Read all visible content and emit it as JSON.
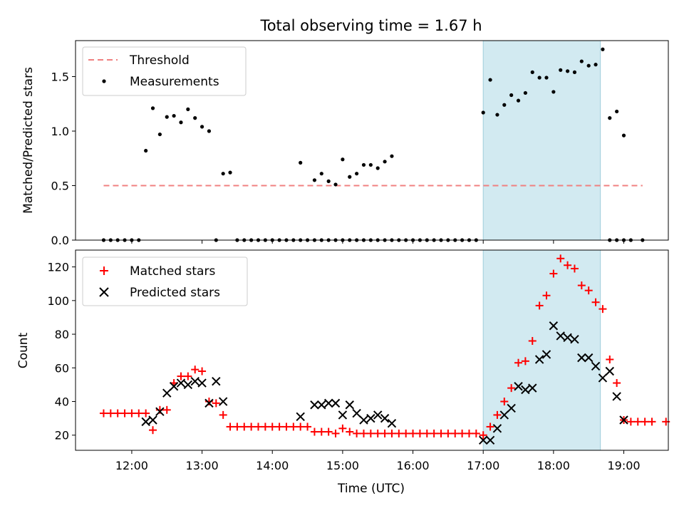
{
  "figure_title": "Total observing time = 1.67 h",
  "chart_data": [
    {
      "type": "scatter",
      "panel": "top",
      "title": "Total observing time = 1.67 h",
      "xlabel": "",
      "ylabel": "Matched/Predicted stars",
      "xlim": [
        "11:12",
        "19:38"
      ],
      "ylim": [
        0,
        1.83
      ],
      "yticks": [
        0.0,
        0.5,
        1.0,
        1.5
      ],
      "ytick_labels": [
        "0.0",
        "0.5",
        "1.0",
        "1.5"
      ],
      "highlight_span": {
        "x0": "17:00",
        "x1": "18:40",
        "color": "#add8e6"
      },
      "legend": {
        "location": "top-left",
        "entries": [
          "Threshold",
          "Measurements"
        ]
      },
      "threshold": {
        "name": "Threshold",
        "x0": "11:36",
        "x1": "19:16",
        "y": 0.5,
        "color": "#f08080",
        "style": "dashed"
      },
      "series": [
        {
          "name": "Measurements",
          "color": "#000000",
          "marker": "dot",
          "points": [
            [
              "11:36",
              0
            ],
            [
              "11:42",
              0
            ],
            [
              "11:48",
              0
            ],
            [
              "11:54",
              0
            ],
            [
              "12:00",
              0
            ],
            [
              "12:06",
              0
            ],
            [
              "12:12",
              0.82
            ],
            [
              "12:18",
              1.21
            ],
            [
              "12:24",
              0.97
            ],
            [
              "12:30",
              1.13
            ],
            [
              "12:36",
              1.14
            ],
            [
              "12:42",
              1.08
            ],
            [
              "12:48",
              1.2
            ],
            [
              "12:54",
              1.12
            ],
            [
              "13:00",
              1.04
            ],
            [
              "13:06",
              1.0
            ],
            [
              "13:12",
              0
            ],
            [
              "13:18",
              0.61
            ],
            [
              "13:24",
              0.62
            ],
            [
              "13:30",
              0
            ],
            [
              "13:36",
              0
            ],
            [
              "13:42",
              0
            ],
            [
              "13:48",
              0
            ],
            [
              "13:54",
              0
            ],
            [
              "14:00",
              0
            ],
            [
              "14:06",
              0
            ],
            [
              "14:12",
              0
            ],
            [
              "14:18",
              0
            ],
            [
              "14:24",
              0
            ],
            [
              "14:30",
              0
            ],
            [
              "14:36",
              0
            ],
            [
              "14:42",
              0
            ],
            [
              "14:48",
              0
            ],
            [
              "14:54",
              0
            ],
            [
              "15:00",
              0
            ],
            [
              "15:06",
              0
            ],
            [
              "15:12",
              0
            ],
            [
              "15:18",
              0
            ],
            [
              "15:24",
              0
            ],
            [
              "15:30",
              0
            ],
            [
              "15:36",
              0
            ],
            [
              "15:42",
              0
            ],
            [
              "14:24",
              0.71
            ],
            [
              "14:36",
              0.55
            ],
            [
              "14:42",
              0.61
            ],
            [
              "14:48",
              0.54
            ],
            [
              "14:54",
              0.51
            ],
            [
              "15:00",
              0.74
            ],
            [
              "15:06",
              0.58
            ],
            [
              "15:12",
              0.61
            ],
            [
              "15:18",
              0.69
            ],
            [
              "15:24",
              0.69
            ],
            [
              "15:30",
              0.66
            ],
            [
              "15:36",
              0.72
            ],
            [
              "15:42",
              0.77
            ],
            [
              "15:48",
              0
            ],
            [
              "15:54",
              0
            ],
            [
              "16:00",
              0
            ],
            [
              "16:06",
              0
            ],
            [
              "16:12",
              0
            ],
            [
              "16:18",
              0
            ],
            [
              "16:24",
              0
            ],
            [
              "16:30",
              0
            ],
            [
              "16:36",
              0
            ],
            [
              "16:42",
              0
            ],
            [
              "16:48",
              0
            ],
            [
              "16:54",
              0
            ],
            [
              "17:00",
              1.17
            ],
            [
              "17:06",
              1.47
            ],
            [
              "17:12",
              1.15
            ],
            [
              "17:18",
              1.24
            ],
            [
              "17:24",
              1.33
            ],
            [
              "17:30",
              1.28
            ],
            [
              "17:36",
              1.35
            ],
            [
              "17:42",
              1.54
            ],
            [
              "17:48",
              1.49
            ],
            [
              "17:54",
              1.49
            ],
            [
              "18:00",
              1.36
            ],
            [
              "18:06",
              1.56
            ],
            [
              "18:12",
              1.55
            ],
            [
              "18:18",
              1.54
            ],
            [
              "18:24",
              1.64
            ],
            [
              "18:30",
              1.6
            ],
            [
              "18:36",
              1.61
            ],
            [
              "18:42",
              1.75
            ],
            [
              "18:48",
              1.12
            ],
            [
              "18:54",
              1.18
            ],
            [
              "19:00",
              0.96
            ],
            [
              "18:48",
              0
            ],
            [
              "18:54",
              0
            ],
            [
              "19:00",
              0
            ],
            [
              "19:06",
              0
            ],
            [
              "19:16",
              0
            ]
          ]
        }
      ]
    },
    {
      "type": "scatter",
      "panel": "bottom",
      "xlabel": "Time (UTC)",
      "ylabel": "Count",
      "xlim": [
        "11:12",
        "19:38"
      ],
      "ylim": [
        11,
        130
      ],
      "xticks": [
        "12:00",
        "13:00",
        "14:00",
        "15:00",
        "16:00",
        "17:00",
        "18:00",
        "19:00"
      ],
      "xtick_labels": [
        "12:00",
        "13:00",
        "14:00",
        "15:00",
        "16:00",
        "17:00",
        "18:00",
        "19:00"
      ],
      "yticks": [
        20,
        40,
        60,
        80,
        100,
        120
      ],
      "ytick_labels": [
        "20",
        "40",
        "60",
        "80",
        "100",
        "120"
      ],
      "highlight_span": {
        "x0": "17:00",
        "x1": "18:40",
        "color": "#add8e6"
      },
      "legend": {
        "location": "top-left",
        "entries": [
          "Matched stars",
          "Predicted stars"
        ]
      },
      "series": [
        {
          "name": "Matched stars",
          "color": "#ff0000",
          "marker": "plus",
          "points": [
            [
              "11:36",
              33
            ],
            [
              "11:42",
              33
            ],
            [
              "11:48",
              33
            ],
            [
              "11:54",
              33
            ],
            [
              "12:00",
              33
            ],
            [
              "12:06",
              33
            ],
            [
              "12:12",
              33
            ],
            [
              "12:18",
              23
            ],
            [
              "12:24",
              35
            ],
            [
              "12:30",
              35
            ],
            [
              "12:36",
              51
            ],
            [
              "12:42",
              55
            ],
            [
              "12:48",
              55
            ],
            [
              "12:54",
              59
            ],
            [
              "13:00",
              58
            ],
            [
              "13:06",
              40
            ],
            [
              "13:12",
              39
            ],
            [
              "13:18",
              32
            ],
            [
              "13:24",
              25
            ],
            [
              "13:30",
              25
            ],
            [
              "13:36",
              25
            ],
            [
              "13:42",
              25
            ],
            [
              "13:48",
              25
            ],
            [
              "13:54",
              25
            ],
            [
              "14:00",
              25
            ],
            [
              "14:06",
              25
            ],
            [
              "14:12",
              25
            ],
            [
              "14:18",
              25
            ],
            [
              "14:24",
              25
            ],
            [
              "14:30",
              25
            ],
            [
              "14:36",
              22
            ],
            [
              "14:42",
              22
            ],
            [
              "14:48",
              22
            ],
            [
              "14:54",
              21
            ],
            [
              "15:00",
              24
            ],
            [
              "15:06",
              22
            ],
            [
              "15:12",
              21
            ],
            [
              "15:18",
              21
            ],
            [
              "15:24",
              21
            ],
            [
              "15:30",
              21
            ],
            [
              "15:36",
              21
            ],
            [
              "15:42",
              21
            ],
            [
              "15:48",
              21
            ],
            [
              "15:54",
              21
            ],
            [
              "16:00",
              21
            ],
            [
              "16:06",
              21
            ],
            [
              "16:12",
              21
            ],
            [
              "16:18",
              21
            ],
            [
              "16:24",
              21
            ],
            [
              "16:30",
              21
            ],
            [
              "16:36",
              21
            ],
            [
              "16:42",
              21
            ],
            [
              "16:48",
              21
            ],
            [
              "16:54",
              21
            ],
            [
              "17:00",
              20
            ],
            [
              "17:06",
              25
            ],
            [
              "17:12",
              32
            ],
            [
              "17:18",
              40
            ],
            [
              "17:24",
              48
            ],
            [
              "17:30",
              63
            ],
            [
              "17:36",
              64
            ],
            [
              "17:42",
              76
            ],
            [
              "17:48",
              97
            ],
            [
              "17:54",
              103
            ],
            [
              "18:00",
              116
            ],
            [
              "18:06",
              125
            ],
            [
              "18:12",
              121
            ],
            [
              "18:18",
              119
            ],
            [
              "18:24",
              109
            ],
            [
              "18:30",
              106
            ],
            [
              "18:36",
              99
            ],
            [
              "18:42",
              95
            ],
            [
              "18:48",
              65
            ],
            [
              "18:54",
              51
            ],
            [
              "19:00",
              29
            ],
            [
              "19:06",
              28
            ],
            [
              "19:12",
              28
            ],
            [
              "19:18",
              28
            ],
            [
              "19:24",
              28
            ],
            [
              "19:36",
              28
            ]
          ]
        },
        {
          "name": "Predicted stars",
          "color": "#000000",
          "marker": "x",
          "points": [
            [
              "12:12",
              28
            ],
            [
              "12:18",
              29
            ],
            [
              "12:24",
              34
            ],
            [
              "12:30",
              45
            ],
            [
              "12:36",
              49
            ],
            [
              "12:42",
              51
            ],
            [
              "12:48",
              50
            ],
            [
              "12:54",
              52
            ],
            [
              "13:00",
              51
            ],
            [
              "13:06",
              39
            ],
            [
              "13:12",
              52
            ],
            [
              "13:18",
              40
            ],
            [
              "14:24",
              31
            ],
            [
              "14:36",
              38
            ],
            [
              "14:42",
              38
            ],
            [
              "14:48",
              39
            ],
            [
              "14:54",
              39
            ],
            [
              "15:00",
              32
            ],
            [
              "15:06",
              38
            ],
            [
              "15:12",
              33
            ],
            [
              "15:18",
              29
            ],
            [
              "15:24",
              30
            ],
            [
              "15:30",
              32
            ],
            [
              "15:36",
              30
            ],
            [
              "15:42",
              27
            ],
            [
              "17:00",
              17
            ],
            [
              "17:06",
              17
            ],
            [
              "17:12",
              24
            ],
            [
              "17:18",
              32
            ],
            [
              "17:24",
              36
            ],
            [
              "17:30",
              49
            ],
            [
              "17:36",
              47
            ],
            [
              "17:42",
              48
            ],
            [
              "17:48",
              65
            ],
            [
              "17:54",
              68
            ],
            [
              "18:00",
              85
            ],
            [
              "18:06",
              79
            ],
            [
              "18:12",
              78
            ],
            [
              "18:18",
              77
            ],
            [
              "18:24",
              66
            ],
            [
              "18:30",
              66
            ],
            [
              "18:36",
              61
            ],
            [
              "18:42",
              54
            ],
            [
              "18:48",
              58
            ],
            [
              "18:54",
              43
            ],
            [
              "19:00",
              29
            ]
          ]
        }
      ]
    }
  ]
}
